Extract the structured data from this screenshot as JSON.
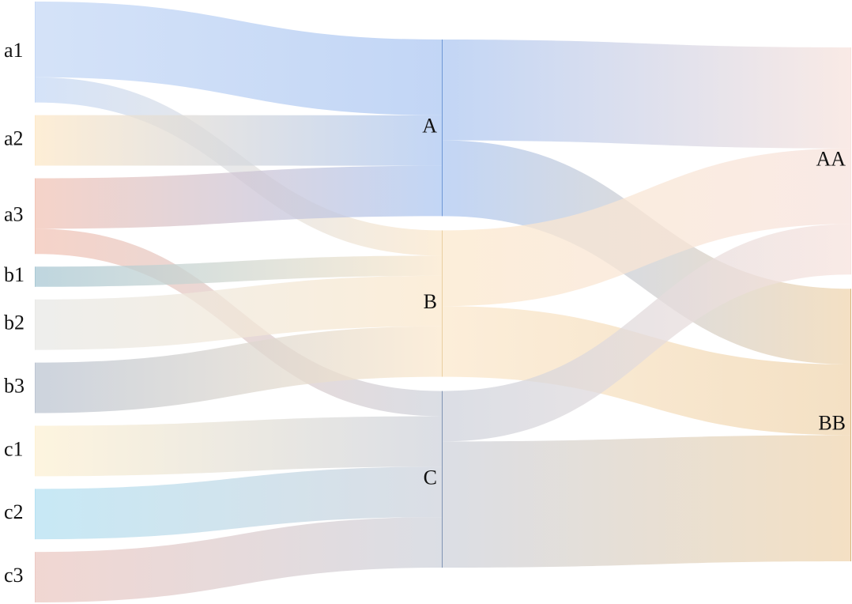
{
  "chart_data": {
    "type": "sankey",
    "nodes": [
      {
        "id": "a1",
        "label": "a1",
        "level": 0,
        "color": "#c6d9f6"
      },
      {
        "id": "a2",
        "label": "a2",
        "level": 0,
        "color": "#fde8c8"
      },
      {
        "id": "a3",
        "label": "a3",
        "level": 0,
        "color": "#f2c4b6"
      },
      {
        "id": "b1",
        "label": "b1",
        "level": 0,
        "color": "#a9c8d4"
      },
      {
        "id": "b2",
        "label": "b2",
        "level": 0,
        "color": "#e8e8e6"
      },
      {
        "id": "b3",
        "label": "b3",
        "level": 0,
        "color": "#bcc5d2"
      },
      {
        "id": "c1",
        "label": "c1",
        "level": 0,
        "color": "#fdf1d4"
      },
      {
        "id": "c2",
        "label": "c2",
        "level": 0,
        "color": "#b5e1f2"
      },
      {
        "id": "c3",
        "label": "c3",
        "level": 0,
        "color": "#ecc9c3"
      },
      {
        "id": "A",
        "label": "A",
        "level": 1,
        "color": "#aec8f2"
      },
      {
        "id": "B",
        "label": "B",
        "level": 1,
        "color": "#fbe8cd"
      },
      {
        "id": "C",
        "label": "C",
        "level": 1,
        "color": "#cfd3dc"
      },
      {
        "id": "AA",
        "label": "AA",
        "level": 2,
        "color": "#f7e3dd"
      },
      {
        "id": "BB",
        "label": "BB",
        "level": 2,
        "color": "#f0d6b0"
      }
    ],
    "links": [
      {
        "source": "a1",
        "target": "A",
        "value": 3
      },
      {
        "source": "a1",
        "target": "B",
        "value": 1
      },
      {
        "source": "a2",
        "target": "A",
        "value": 2
      },
      {
        "source": "a3",
        "target": "A",
        "value": 2
      },
      {
        "source": "a3",
        "target": "C",
        "value": 1
      },
      {
        "source": "b1",
        "target": "B",
        "value": 0.8
      },
      {
        "source": "b2",
        "target": "B",
        "value": 2
      },
      {
        "source": "b3",
        "target": "B",
        "value": 2
      },
      {
        "source": "c1",
        "target": "C",
        "value": 2
      },
      {
        "source": "c2",
        "target": "C",
        "value": 2
      },
      {
        "source": "c3",
        "target": "C",
        "value": 2
      },
      {
        "source": "A",
        "target": "AA",
        "value": 4
      },
      {
        "source": "A",
        "target": "BB",
        "value": 3
      },
      {
        "source": "B",
        "target": "AA",
        "value": 3
      },
      {
        "source": "B",
        "target": "BB",
        "value": 2.8
      },
      {
        "source": "C",
        "target": "AA",
        "value": 2
      },
      {
        "source": "C",
        "target": "BB",
        "value": 5
      }
    ]
  }
}
